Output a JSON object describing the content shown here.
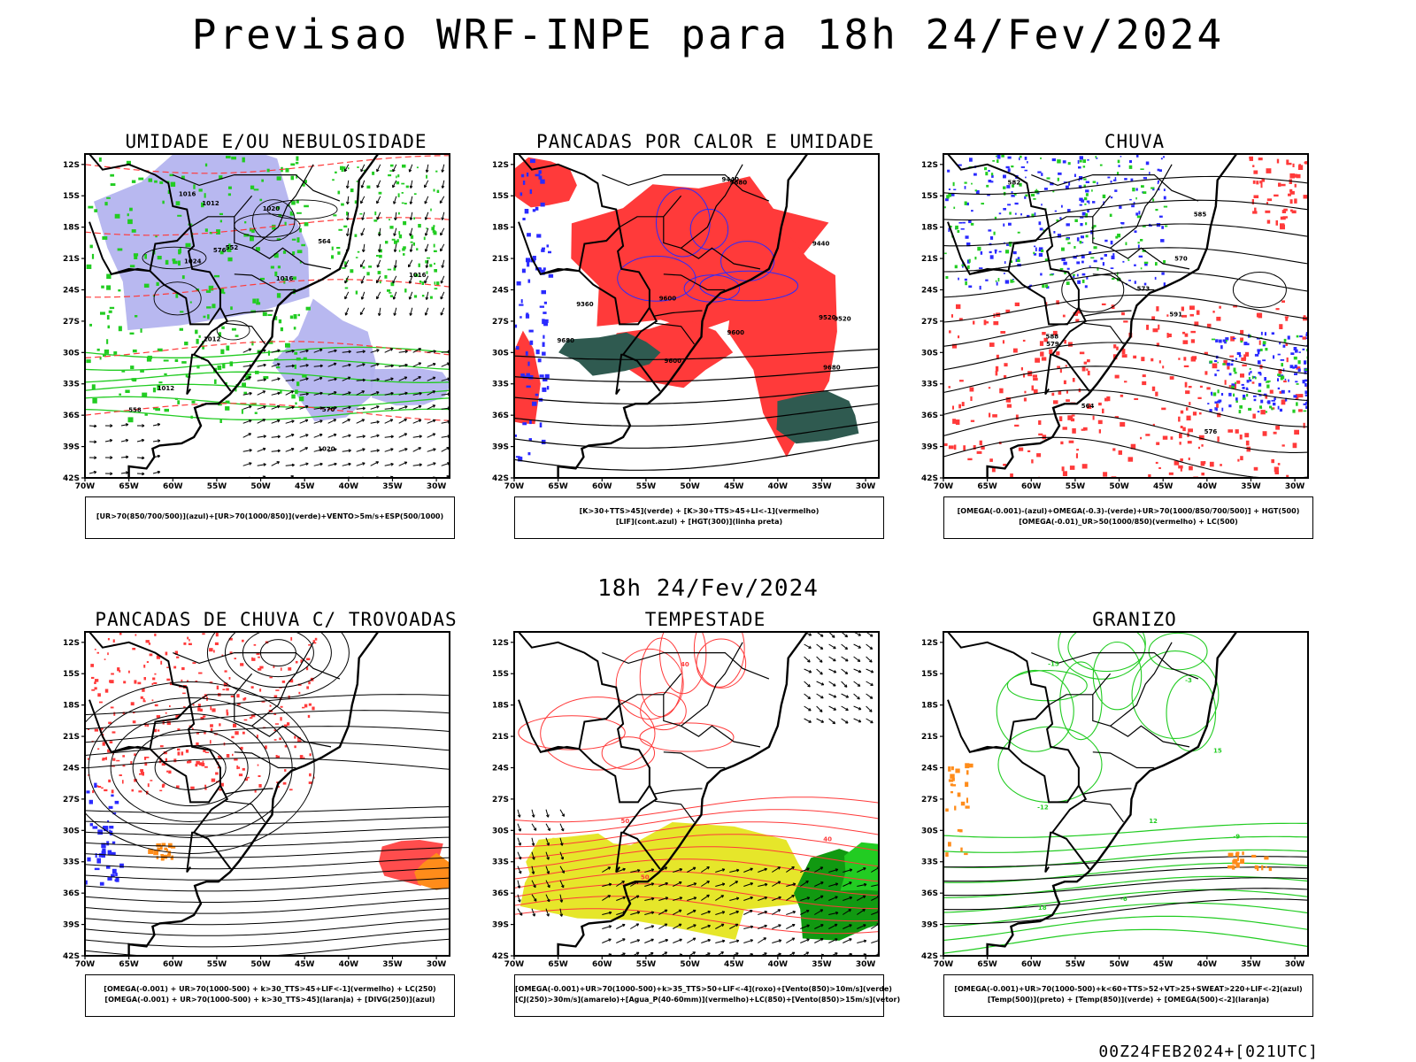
{
  "title": "Previsao WRF-INPE  para 18h 24/Fev/2024",
  "mid_title": "18h 24/Fev/2024",
  "footer": "00Z24FEB2024+[021UTC]",
  "axes": {
    "lat_labels": [
      "12S",
      "15S",
      "18S",
      "21S",
      "24S",
      "27S",
      "30S",
      "33S",
      "36S",
      "39S",
      "42S"
    ],
    "lon_labels": [
      "70W",
      "65W",
      "60W",
      "55W",
      "50W",
      "45W",
      "40W",
      "35W",
      "30W"
    ]
  },
  "colors": {
    "humidity_blue": "#b0b0ee",
    "green": "#22cc22",
    "red": "#ff3a3a",
    "dark_teal": "#2f5a50",
    "blue": "#2a2aff",
    "yellow": "#e6e62a",
    "orange": "#ff8c1a"
  },
  "panels": [
    {
      "title": "UMIDADE E/OU NEBULOSIDADE",
      "legend": [
        "[UR>70(850/700/500)](azul)+[UR>70(1000/850)](verde)+VENTO>5m/s+ESP(500/1000)"
      ],
      "contour_labels": [
        "1012",
        "1012",
        "1012",
        "1016",
        "1016",
        "1016",
        "1020",
        "1020",
        "1024",
        "576",
        "570",
        "564",
        "558",
        "552"
      ]
    },
    {
      "title": "PANCADAS POR CALOR E UMIDADE",
      "legend": [
        "[K>30+TTS>45](verde) + [K>30+TTS>45+LI<-1](vermelho)",
        "[LIF](cont.azul) + [HGT(300)](linha preta)"
      ],
      "contour_labels": [
        "9680",
        "9680",
        "9680",
        "9600",
        "9600",
        "9600",
        "9520",
        "9520",
        "9440",
        "9440",
        "9360"
      ]
    },
    {
      "title": "CHUVA",
      "legend": [
        "[OMEGA(-0.001)-(azul)+OMEGA(-0.3)-(verde)+UR>70(1000/850/700/500)] + HGT(500)",
        "[OMEGA(-0.01)_UR>50(1000/850)(vermelho) + LC(500)"
      ],
      "contour_labels": [
        "591",
        "588",
        "585",
        "582",
        "579",
        "576",
        "573",
        "570",
        "564"
      ]
    },
    {
      "title": "PANCADAS DE CHUVA C/ TROVOADAS",
      "legend": [
        "[OMEGA(-0.001) + UR>70(1000-500) + k>30_TTS>45+LIF<-1](vermelho) + LC(250)",
        "[OMEGA(-0.001) + UR>70(1000-500) + k>30_TTS>45](laranja) + [DIVG(250)](azul)"
      ],
      "contour_labels": []
    },
    {
      "title": "TEMPESTADE",
      "legend": [
        "[OMEGA(-0.001)+UR>70(1000-500)+k>35_TTS>50+LIF<-4](roxo)+[Vento(850)>10m/s](verde)",
        "[CJ(250)>30m/s](amarelo)+[Agua_P(40-60mm)](vermelho)+LC(850)+[Vento(850)>15m/s](vetor)"
      ],
      "contour_labels": [
        "40",
        "50",
        "50",
        "40"
      ]
    },
    {
      "title": "GRANIZO",
      "legend": [
        "[OMEGA(-0.001)+UR>70(1000-500)+k<60+TTS>52+VT>25+SWEAT>220+LIF<-2](azul)",
        "[Temp(500)](preto) + [Temp(850)](verde) + [OMEGA(500)<-2](laranja)"
      ],
      "contour_labels": [
        "-3",
        "-6",
        "-9",
        "-12",
        "-15",
        "12",
        "15",
        "18"
      ]
    }
  ]
}
